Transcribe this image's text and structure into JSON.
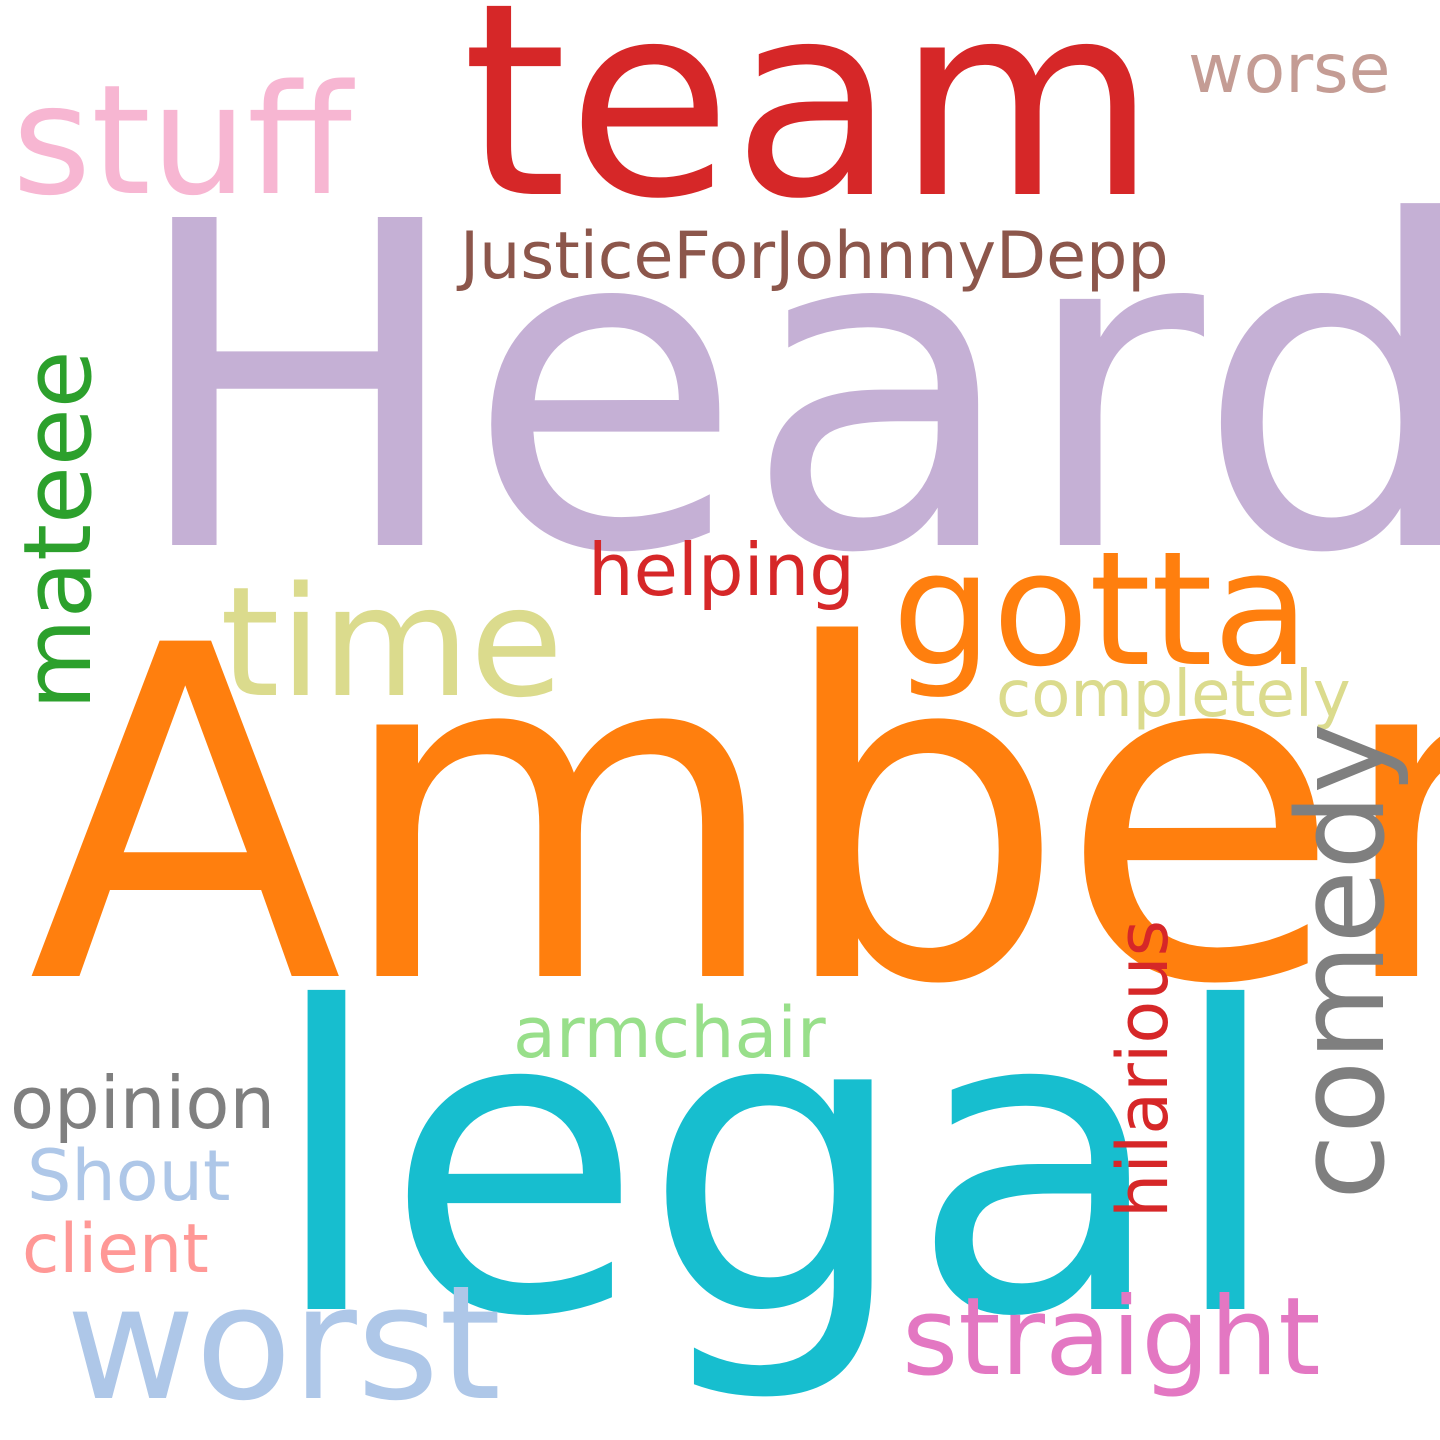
{
  "words": [
    {
      "text": "Heard",
      "color": "#c5b0d5"
    },
    {
      "text": "Amber",
      "color": "#ff7f0e"
    },
    {
      "text": "legal",
      "color": "#17becf"
    },
    {
      "text": "team",
      "color": "#d62728"
    },
    {
      "text": "stuff",
      "color": "#f7b6d2"
    },
    {
      "text": "worse",
      "color": "#c49c94"
    },
    {
      "text": "JusticeForJohnnyDepp",
      "color": "#8c564b"
    },
    {
      "text": "mateee",
      "color": "#2ca02c"
    },
    {
      "text": "gotta",
      "color": "#ff7f0e"
    },
    {
      "text": "time",
      "color": "#dbdb8d"
    },
    {
      "text": "helping",
      "color": "#d62728"
    },
    {
      "text": "completely",
      "color": "#dbdb8d"
    },
    {
      "text": "comedy",
      "color": "#7f7f7f"
    },
    {
      "text": "hilarious",
      "color": "#d62728"
    },
    {
      "text": "armchair",
      "color": "#98df8a"
    },
    {
      "text": "opinion",
      "color": "#7f7f7f"
    },
    {
      "text": "Shout",
      "color": "#aec7e8"
    },
    {
      "text": "client",
      "color": "#ff9896"
    },
    {
      "text": "worst",
      "color": "#aec7e8"
    },
    {
      "text": "straight",
      "color": "#e377c2"
    }
  ]
}
